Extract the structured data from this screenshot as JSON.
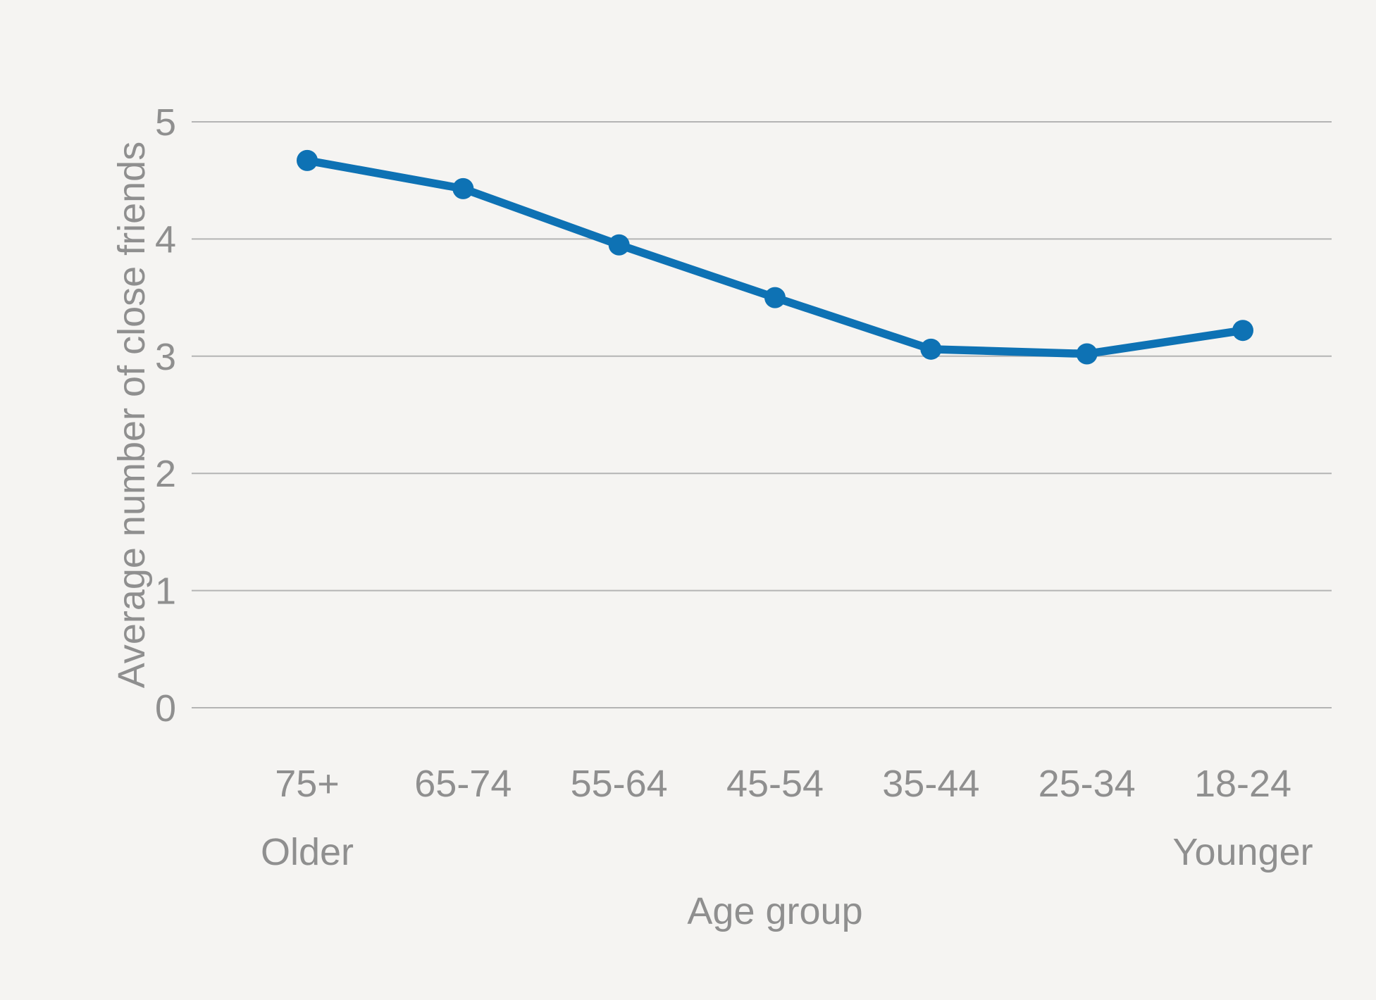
{
  "chart_data": {
    "type": "line",
    "categories": [
      "75+",
      "65-74",
      "55-64",
      "45-54",
      "35-44",
      "25-34",
      "18-24"
    ],
    "values": [
      4.67,
      4.43,
      3.95,
      3.5,
      3.06,
      3.02,
      3.22
    ],
    "series_name": "Average number of close friends",
    "title": "",
    "xlabel": "Age group",
    "ylabel": "Average number of close friends",
    "ylim": [
      0,
      5
    ],
    "yticks": [
      "5",
      "4",
      "3",
      "2",
      "1",
      "0"
    ],
    "ytick_values": [
      5,
      4,
      3,
      2,
      1,
      0
    ],
    "grid": true,
    "legend": false,
    "end_labels": {
      "left": "Older",
      "right": "Younger"
    },
    "colors": {
      "line": "#0e72b4",
      "marker": "#0e72b4",
      "grid": "#b4b4b4",
      "text": "#8f8f8f",
      "background": "#f5f4f2"
    }
  }
}
